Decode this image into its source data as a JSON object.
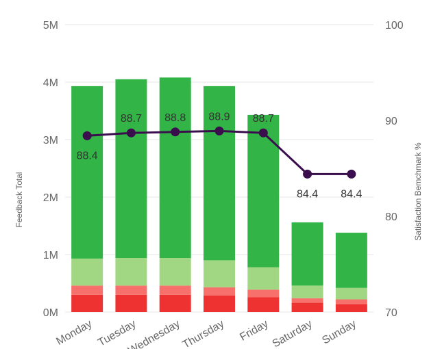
{
  "chart_data": {
    "type": "bar",
    "stacked": true,
    "categories": [
      "Monday",
      "Tuesday",
      "Wednesday",
      "Thursday",
      "Friday",
      "Saturday",
      "Sunday"
    ],
    "series": [
      {
        "values": [
          0.3,
          0.3,
          0.3,
          0.29,
          0.26,
          0.16,
          0.14
        ],
        "color": "#ee3232"
      },
      {
        "values": [
          0.16,
          0.16,
          0.16,
          0.14,
          0.13,
          0.08,
          0.08
        ],
        "color": "#f7706b"
      },
      {
        "values": [
          0.47,
          0.48,
          0.48,
          0.47,
          0.39,
          0.22,
          0.2
        ],
        "color": "#a1d683"
      },
      {
        "values": [
          3.0,
          3.11,
          3.14,
          3.03,
          2.65,
          1.1,
          0.96
        ],
        "color": "#32b446"
      }
    ],
    "line": {
      "values": [
        88.4,
        88.7,
        88.8,
        88.9,
        88.7,
        84.4,
        84.4
      ],
      "labels": [
        "88.4",
        "88.7",
        "88.8",
        "88.9",
        "88.7",
        "84.4",
        "84.4"
      ],
      "color": "#3a0d4c"
    },
    "ylabel": "Feedback Total",
    "y2label": "Satisfaction Bemchmark %",
    "yticks": [
      "0M",
      "1M",
      "2M",
      "3M",
      "4M",
      "5M"
    ],
    "ylim": [
      0,
      5
    ],
    "y2ticks": [
      "70",
      "80",
      "90",
      "100"
    ],
    "y2lim": [
      70,
      100
    ],
    "grid": true
  }
}
